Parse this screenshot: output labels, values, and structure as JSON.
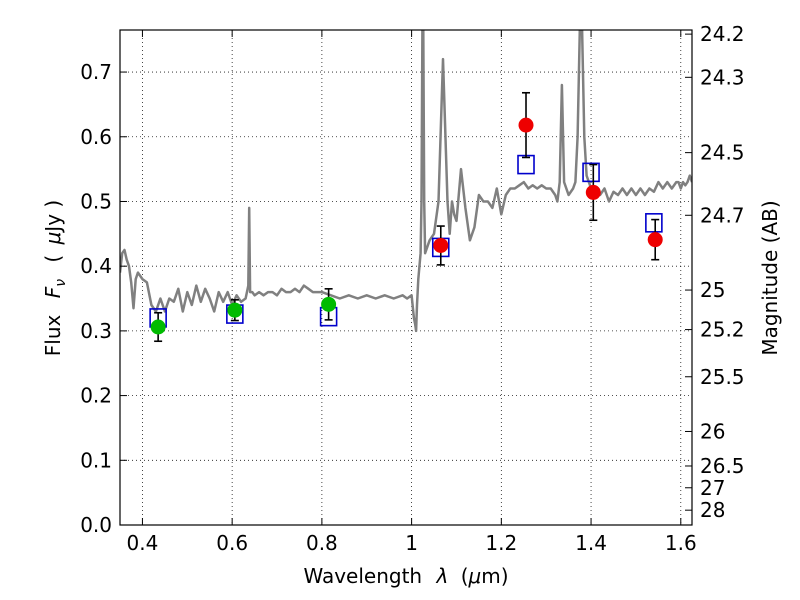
{
  "chart_data": {
    "type": "scatter",
    "xlabel_text": "Wavelength",
    "xlabel_symbol": "λ",
    "xlabel_unit_open": "(",
    "xlabel_unit_mu": "μ",
    "xlabel_unit_rest": "m)",
    "ylabel_text": "Flux",
    "ylabel_symbol_F": "F",
    "ylabel_symbol_sub": "ν",
    "ylabel_unit_open": "(",
    "ylabel_unit_mu": "μ",
    "ylabel_unit_rest": "Jy )",
    "y2label": "Magnitude (AB)",
    "xlim": [
      0.35,
      1.625
    ],
    "ylim": [
      0.0,
      0.765
    ],
    "x_ticks": [
      0.4,
      0.6,
      0.8,
      1.0,
      1.2,
      1.4,
      1.6
    ],
    "x_tick_labels": [
      "0.4",
      "0.6",
      "0.8",
      "1",
      "1.2",
      "1.4",
      "1.6"
    ],
    "y_ticks": [
      0.0,
      0.1,
      0.2,
      0.3,
      0.4,
      0.5,
      0.6,
      0.7
    ],
    "y_tick_labels": [
      "0.0",
      "0.1",
      "0.2",
      "0.3",
      "0.4",
      "0.5",
      "0.6",
      "0.7"
    ],
    "mag_ticks": [
      24.2,
      24.3,
      24.5,
      24.7,
      25,
      25.2,
      25.5,
      26,
      26.5,
      27,
      28
    ],
    "mag_tick_labels": [
      "24.2",
      "24.3",
      "24.5",
      "24.7",
      "25",
      "25.2",
      "25.5",
      "26",
      "26.5",
      "27",
      "28"
    ],
    "grid": true,
    "colors": {
      "spectrum": "#808080",
      "optical_points": "#00bb00",
      "nir_points": "#ee0000",
      "model_boxes": "#0000cc",
      "error_bars": "#000000"
    },
    "spectrum": {
      "x": [
        0.35,
        0.355,
        0.36,
        0.365,
        0.37,
        0.375,
        0.38,
        0.385,
        0.39,
        0.395,
        0.4,
        0.41,
        0.42,
        0.43,
        0.44,
        0.45,
        0.46,
        0.47,
        0.48,
        0.49,
        0.5,
        0.51,
        0.52,
        0.53,
        0.54,
        0.55,
        0.56,
        0.57,
        0.58,
        0.59,
        0.6,
        0.61,
        0.62,
        0.63,
        0.636,
        0.638,
        0.64,
        0.645,
        0.65,
        0.66,
        0.67,
        0.68,
        0.69,
        0.7,
        0.71,
        0.72,
        0.73,
        0.74,
        0.75,
        0.76,
        0.77,
        0.78,
        0.79,
        0.8,
        0.82,
        0.84,
        0.86,
        0.88,
        0.9,
        0.92,
        0.94,
        0.96,
        0.98,
        0.99,
        1.0,
        1.005,
        1.008,
        1.01,
        1.012,
        1.015,
        1.02,
        1.022,
        1.024,
        1.026,
        1.028,
        1.03,
        1.04,
        1.05,
        1.06,
        1.07,
        1.08,
        1.085,
        1.09,
        1.095,
        1.1,
        1.11,
        1.12,
        1.13,
        1.14,
        1.15,
        1.16,
        1.17,
        1.18,
        1.19,
        1.2,
        1.21,
        1.22,
        1.23,
        1.24,
        1.25,
        1.26,
        1.27,
        1.28,
        1.29,
        1.3,
        1.31,
        1.32,
        1.325,
        1.33,
        1.335,
        1.34,
        1.35,
        1.36,
        1.365,
        1.37,
        1.375,
        1.38,
        1.385,
        1.39,
        1.4,
        1.41,
        1.42,
        1.43,
        1.44,
        1.45,
        1.46,
        1.47,
        1.48,
        1.49,
        1.5,
        1.51,
        1.52,
        1.53,
        1.54,
        1.55,
        1.56,
        1.57,
        1.58,
        1.59,
        1.595,
        1.6,
        1.605,
        1.61,
        1.615,
        1.62,
        1.625
      ],
      "y": [
        0.39,
        0.42,
        0.425,
        0.41,
        0.4,
        0.375,
        0.335,
        0.38,
        0.39,
        0.385,
        0.38,
        0.375,
        0.34,
        0.33,
        0.35,
        0.33,
        0.35,
        0.345,
        0.365,
        0.33,
        0.36,
        0.34,
        0.37,
        0.345,
        0.365,
        0.35,
        0.33,
        0.36,
        0.345,
        0.36,
        0.34,
        0.355,
        0.345,
        0.35,
        0.37,
        0.49,
        0.36,
        0.36,
        0.355,
        0.36,
        0.355,
        0.36,
        0.36,
        0.355,
        0.365,
        0.36,
        0.36,
        0.365,
        0.36,
        0.37,
        0.365,
        0.36,
        0.36,
        0.36,
        0.355,
        0.35,
        0.355,
        0.35,
        0.355,
        0.35,
        0.355,
        0.35,
        0.355,
        0.35,
        0.355,
        0.32,
        0.31,
        0.3,
        0.34,
        0.38,
        0.42,
        0.5,
        0.765,
        0.765,
        0.5,
        0.42,
        0.44,
        0.45,
        0.5,
        0.72,
        0.5,
        0.45,
        0.5,
        0.48,
        0.47,
        0.55,
        0.49,
        0.44,
        0.46,
        0.51,
        0.5,
        0.5,
        0.49,
        0.52,
        0.48,
        0.51,
        0.52,
        0.52,
        0.525,
        0.53,
        0.52,
        0.525,
        0.52,
        0.525,
        0.52,
        0.52,
        0.51,
        0.5,
        0.53,
        0.68,
        0.53,
        0.51,
        0.52,
        0.53,
        0.6,
        0.765,
        0.765,
        0.6,
        0.54,
        0.52,
        0.51,
        0.51,
        0.52,
        0.5,
        0.515,
        0.51,
        0.52,
        0.51,
        0.52,
        0.51,
        0.52,
        0.51,
        0.52,
        0.515,
        0.53,
        0.52,
        0.53,
        0.52,
        0.53,
        0.53,
        0.52,
        0.53,
        0.525,
        0.53,
        0.54,
        0.53
      ],
      "y_clip_tail": [
        0.53,
        0.53,
        0.54,
        0.53,
        0.54,
        0.54,
        0.53,
        0.55,
        0.55,
        0.54,
        0.54,
        0.53,
        0.53
      ]
    },
    "observed": [
      {
        "x": 0.435,
        "y": 0.306,
        "yerr": 0.022,
        "band": "optical"
      },
      {
        "x": 0.606,
        "y": 0.332,
        "yerr": 0.016,
        "band": "optical"
      },
      {
        "x": 0.815,
        "y": 0.341,
        "yerr": 0.024,
        "band": "optical"
      },
      {
        "x": 1.065,
        "y": 0.432,
        "yerr": 0.03,
        "band": "nir"
      },
      {
        "x": 1.255,
        "y": 0.618,
        "yerr": 0.05,
        "band": "nir"
      },
      {
        "x": 1.405,
        "y": 0.514,
        "yerr": 0.043,
        "band": "nir"
      },
      {
        "x": 1.543,
        "y": 0.441,
        "yerr": 0.031,
        "band": "nir"
      }
    ],
    "model": [
      {
        "x": 0.435,
        "y": 0.32
      },
      {
        "x": 0.606,
        "y": 0.326
      },
      {
        "x": 0.815,
        "y": 0.322
      },
      {
        "x": 1.065,
        "y": 0.429
      },
      {
        "x": 1.255,
        "y": 0.557
      },
      {
        "x": 1.4,
        "y": 0.545
      },
      {
        "x": 1.54,
        "y": 0.467
      }
    ]
  }
}
